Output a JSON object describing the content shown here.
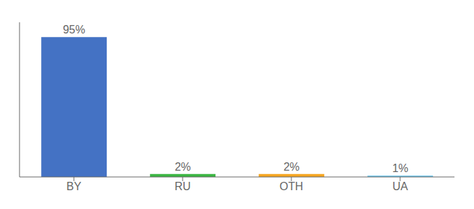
{
  "chart_data": {
    "type": "bar",
    "categories": [
      "BY",
      "RU",
      "OTH",
      "UA"
    ],
    "values": [
      95,
      2,
      2,
      1
    ],
    "value_labels": [
      "95%",
      "2%",
      "2%",
      "1%"
    ],
    "data_labels": true,
    "colors": [
      "#4472c4",
      "#3cb543",
      "#f5a623",
      "#74c6e8"
    ],
    "ylim": [
      0,
      105
    ],
    "tick_labels": "x",
    "grid": false
  }
}
